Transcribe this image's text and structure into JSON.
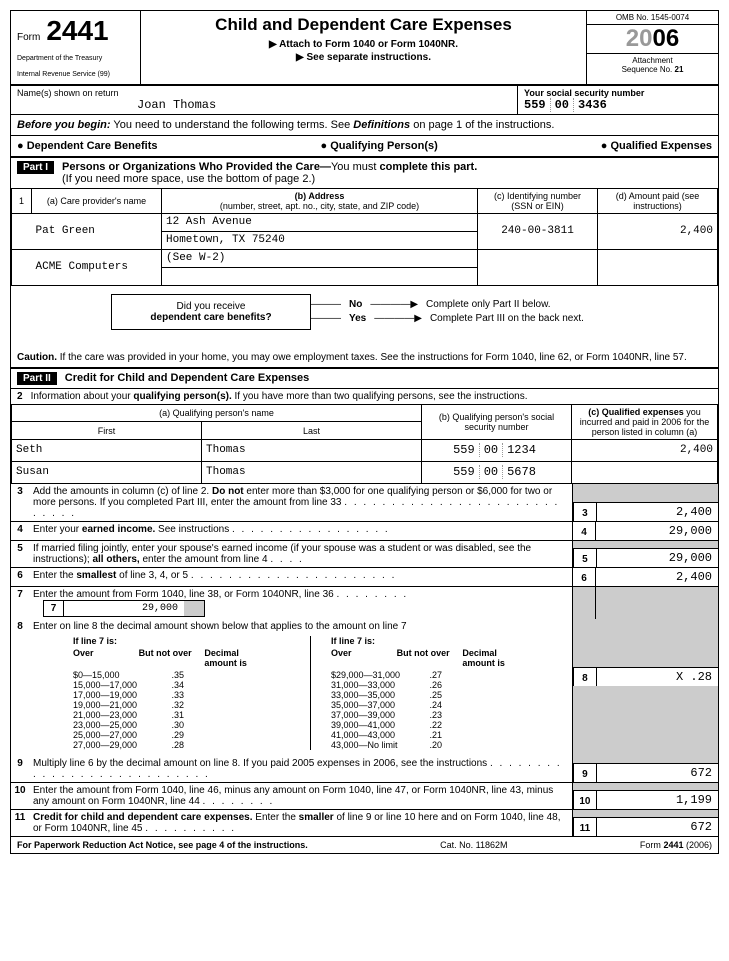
{
  "form": {
    "label": "Form",
    "number": "2441",
    "dept1": "Department of the Treasury",
    "dept2": "Internal Revenue Service   (99)"
  },
  "header": {
    "title": "Child and Dependent Care Expenses",
    "sub1": "▶ Attach to Form 1040 or Form 1040NR.",
    "sub2": "▶ See separate instructions.",
    "omb": "OMB No. 1545-0074",
    "year20": "20",
    "year06": "06",
    "att": "Attachment",
    "seq": "Sequence No.",
    "seqnum": "21"
  },
  "names": {
    "label": "Name(s) shown on return",
    "value": "Joan Thomas",
    "ssnlabel": "Your social security number",
    "ssn1": "559",
    "ssn2": "00",
    "ssn3": "3436"
  },
  "begin": {
    "b1": "Before you begin:",
    "t1": " You need to understand the following terms. See ",
    "b2": "Definitions",
    "t2": " on page 1 of the instructions."
  },
  "terms": {
    "t1": "● Dependent Care Benefits",
    "t2": "● Qualifying Person(s)",
    "t3": "● Qualified Expenses"
  },
  "part1": {
    "badge": "Part I",
    "title": "Persons or Organizations Who Provided the Care—",
    "must": "You must",
    "title2": " complete this part.",
    "sub": "(If you need more space, use the bottom of page 2.)"
  },
  "p1cols": {
    "n": "1",
    "a": "(a) Care provider's name",
    "b": "(b) Address",
    "bsub": "(number, street, apt. no., city, state, and ZIP code)",
    "c": "(c) Identifying number (SSN or EIN)",
    "d": "(d) Amount paid (see instructions)"
  },
  "p1r1": {
    "name": "Pat Green",
    "addr1": "12 Ash Avenue",
    "addr2": "Hometown, TX 75240",
    "id": "240-00-3811",
    "amt": "2,400"
  },
  "p1r2": {
    "name": "ACME Computers",
    "addr": "(See W-2)"
  },
  "flow": {
    "q1": "Did you receive",
    "q2": "dependent care benefits?",
    "no": "No",
    "yes": "Yes",
    "noact": "Complete only Part II below.",
    "yesact": "Complete Part III on the back next."
  },
  "caution": {
    "b": "Caution.",
    "t": " If the care was provided in your home, you may owe employment taxes. See the instructions for Form 1040, line 62, or Form 1040NR, line 57."
  },
  "part2": {
    "badge": "Part II",
    "title": "Credit for Child and Dependent Care Expenses"
  },
  "l2": {
    "n": "2",
    "t": "Information about your ",
    "b": "qualifying person(s).",
    "t2": " If you have more than two qualifying persons, see the instructions."
  },
  "qpcols": {
    "a": "(a) Qualifying person's name",
    "first": "First",
    "last": "Last",
    "b": "(b) Qualifying person's social security number",
    "c": "(c) Qualified expenses",
    "csub": " you incurred and paid in 2006 for the person listed in column (a)"
  },
  "qp1": {
    "first": "Seth",
    "last": "Thomas",
    "s1": "559",
    "s2": "00",
    "s3": "1234",
    "amt": "2,400"
  },
  "qp2": {
    "first": "Susan",
    "last": "Thomas",
    "s1": "559",
    "s2": "00",
    "s3": "5678",
    "amt": ""
  },
  "l3": {
    "n": "3",
    "t": "Add the amounts in column (c) of line 2. ",
    "b": "Do not",
    "t2": " enter more than $3,000 for one qualifying person or $6,000 for two or more persons. If you completed Part III, enter the amount from line 33",
    "amt": "2,400"
  },
  "l4": {
    "n": "4",
    "t": "Enter your ",
    "b": "earned income.",
    "t2": " See instructions",
    "amt": "29,000"
  },
  "l5": {
    "n": "5",
    "t": "If married filing jointly, enter your spouse's earned income (if your spouse was a student or was disabled, see the instructions); ",
    "b": "all others,",
    "t2": " enter the amount from line 4",
    "amt": "29,000"
  },
  "l6": {
    "n": "6",
    "t": "Enter the ",
    "b": "smallest",
    "t2": " of line 3, 4, or 5",
    "amt": "2,400"
  },
  "l7": {
    "n": "7",
    "t": "Enter the amount from Form 1040, line 38, or Form 1040NR, line 36",
    "amt": "29,000"
  },
  "l8": {
    "n": "8",
    "t": "Enter on line 8 the decimal amount shown below that applies to the amount on line 7",
    "amt": "X .28"
  },
  "l8h": {
    "if": "If line 7 is:",
    "over": "Over",
    "but": "But not over",
    "dec": "Decimal amount is"
  },
  "dec1": [
    [
      "$0—15,000",
      ".35"
    ],
    [
      "15,000—17,000",
      ".34"
    ],
    [
      "17,000—19,000",
      ".33"
    ],
    [
      "19,000—21,000",
      ".32"
    ],
    [
      "21,000—23,000",
      ".31"
    ],
    [
      "23,000—25,000",
      ".30"
    ],
    [
      "25,000—27,000",
      ".29"
    ],
    [
      "27,000—29,000",
      ".28"
    ]
  ],
  "dec2": [
    [
      "$29,000—31,000",
      ".27"
    ],
    [
      "31,000—33,000",
      ".26"
    ],
    [
      "33,000—35,000",
      ".25"
    ],
    [
      "35,000—37,000",
      ".24"
    ],
    [
      "37,000—39,000",
      ".23"
    ],
    [
      "39,000—41,000",
      ".22"
    ],
    [
      "41,000—43,000",
      ".21"
    ],
    [
      "43,000—No limit",
      ".20"
    ]
  ],
  "l9": {
    "n": "9",
    "t": "Multiply line 6 by the decimal amount on line 8. If you paid 2005 expenses in 2006, see the instructions",
    "amt": "672"
  },
  "l10": {
    "n": "10",
    "t": "Enter the amount from Form 1040, line 46, minus any amount on Form 1040, line 47, or Form 1040NR, line 43, minus any amount on Form 1040NR, line 44",
    "amt": "1,199"
  },
  "l11": {
    "n": "11",
    "b": "Credit for child and dependent care expenses.",
    "t": " Enter the ",
    "b2": "smaller",
    "t2": " of line 9 or line 10 here and on Form 1040, line 48, or Form 1040NR, line 45",
    "amt": "672"
  },
  "footer": {
    "notice": "For Paperwork Reduction Act Notice, see page 4 of the instructions.",
    "cat": "Cat. No. 11862M",
    "form": "Form",
    "num": "2441",
    "yr": "(2006)"
  }
}
